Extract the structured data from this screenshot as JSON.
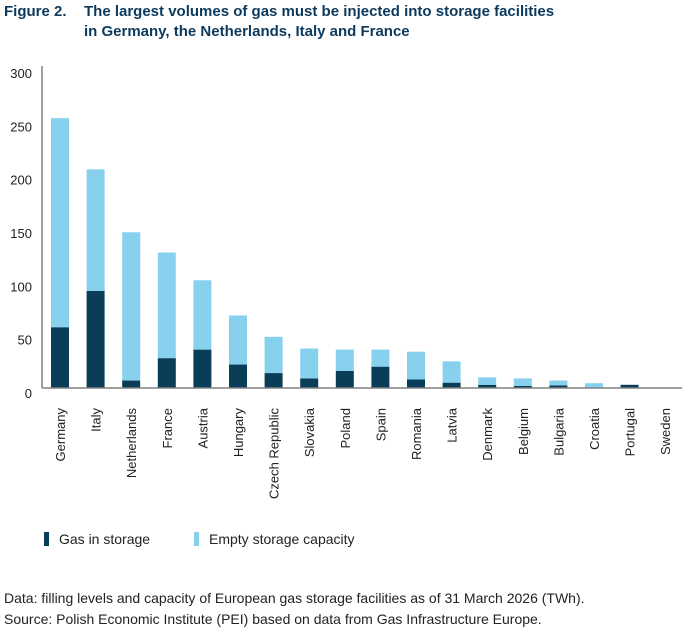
{
  "figure": {
    "label": "Figure 2.",
    "title_line1": "The largest volumes of gas must be injected into storage facilities",
    "title_line2": "in Germany, the Netherlands, Italy and France"
  },
  "colors": {
    "gas_in_storage": "#0a3d58",
    "empty_capacity": "#87d1ee",
    "title": "#0d3a5c",
    "axis": "#808080"
  },
  "chart_data": {
    "type": "bar",
    "stacked": true,
    "title": "The largest volumes of gas must be injected into storage facilities in Germany, the Netherlands, Italy and France",
    "xlabel": "",
    "ylabel": "",
    "ylim": [
      0,
      300
    ],
    "yticks": [
      0,
      50,
      100,
      150,
      200,
      250,
      300
    ],
    "grid": false,
    "legend_position": "bottom-left",
    "categories": [
      "Germany",
      "Italy",
      "Netherlands",
      "France",
      "Austria",
      "Hungary",
      "Czech Republic",
      "Slovakia",
      "Poland",
      "Spain",
      "Romania",
      "Latvia",
      "Denmark",
      "Belgium",
      "Bulgaria",
      "Croatia",
      "Portugal",
      "Sweden"
    ],
    "series": [
      {
        "name": "Gas in storage",
        "values": [
          57,
          91,
          7,
          28,
          36,
          22,
          14,
          9,
          16,
          20,
          8,
          5,
          3,
          2,
          2.5,
          0.5,
          3,
          0
        ]
      },
      {
        "name": "Empty storage capacity",
        "values": [
          196,
          114,
          139,
          99,
          65,
          46,
          34,
          28,
          20,
          16,
          26,
          20,
          7,
          7,
          4.5,
          4,
          0,
          0
        ]
      }
    ]
  },
  "legend": {
    "items": [
      {
        "label": "Gas in storage"
      },
      {
        "label": "Empty storage capacity"
      }
    ]
  },
  "notes": {
    "data": "Data: filling levels and capacity of European gas storage facilities as of 31 March 2026 (TWh).",
    "source": "Source: Polish Economic Institute (PEI) based on data from Gas Infrastructure Europe."
  }
}
